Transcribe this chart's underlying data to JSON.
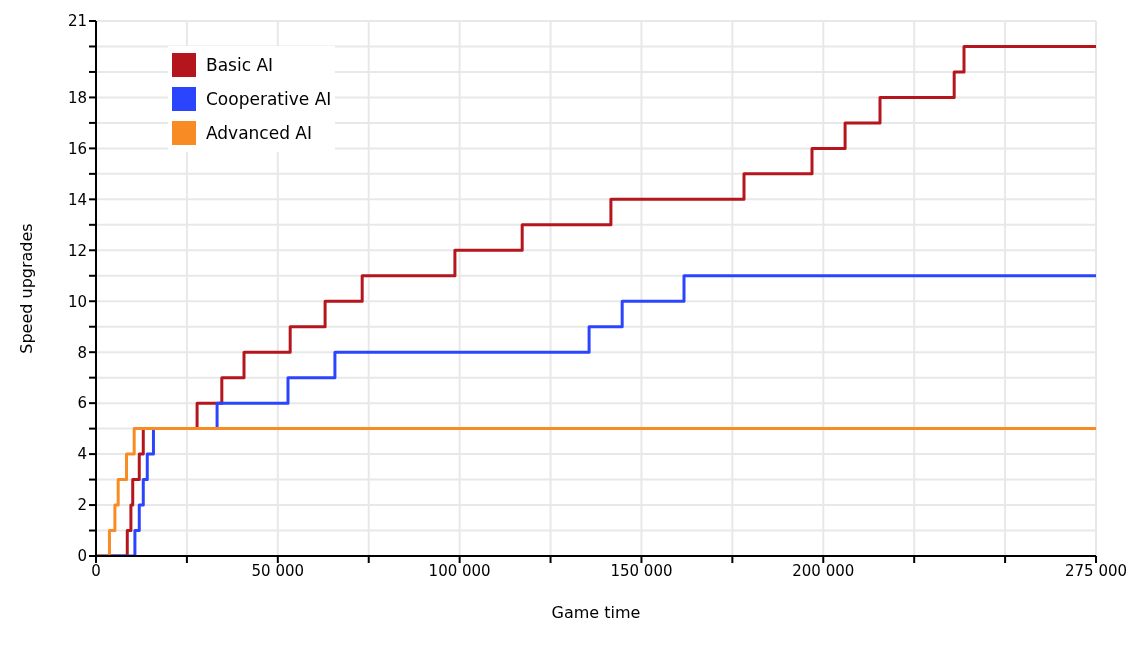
{
  "chart_data": {
    "type": "step",
    "xlabel": "Game time",
    "ylabel": "Speed upgrades",
    "xlim": [
      0,
      275000
    ],
    "ylim": [
      0,
      21
    ],
    "xticks": [
      0,
      {
        "value": 25000,
        "label": null
      },
      {
        "value": 50000,
        "label": "50 000"
      },
      {
        "value": 75000,
        "label": null
      },
      {
        "value": 100000,
        "label": "100 000"
      },
      {
        "value": 125000,
        "label": null
      },
      {
        "value": 150000,
        "label": "150 000"
      },
      {
        "value": 175000,
        "label": null
      },
      {
        "value": 200000,
        "label": "200 000"
      },
      {
        "value": 225000,
        "label": null
      },
      {
        "value": 250000,
        "label": null
      },
      {
        "value": 275000,
        "label": "275 000"
      }
    ],
    "yticks": [
      0,
      {
        "value": 1,
        "label": null
      },
      2,
      {
        "value": 3,
        "label": null
      },
      4,
      {
        "value": 5,
        "label": null
      },
      6,
      {
        "value": 7,
        "label": null
      },
      8,
      {
        "value": 9,
        "label": null
      },
      10,
      {
        "value": 11,
        "label": null
      },
      12,
      {
        "value": 13,
        "label": null
      },
      14,
      {
        "value": 15,
        "label": null
      },
      16,
      {
        "value": 17,
        "label": null
      },
      18,
      {
        "value": 19,
        "label": null
      },
      {
        "value": 20,
        "label": null
      },
      21
    ],
    "grid": true,
    "legend": "top left",
    "marker": "none",
    "line_style": "solid",
    "series": [
      {
        "name": "Basic AI",
        "color": "#b5161e",
        "x": [
          0,
          8600,
          9600,
          10100,
          11900,
          13000,
          27800,
          34600,
          40700,
          53400,
          63000,
          73200,
          98700,
          117200,
          141600,
          178200,
          196900,
          206000,
          215600,
          236000,
          238700,
          275000
        ],
        "values": [
          0,
          1,
          2,
          3,
          4,
          5,
          6,
          7,
          8,
          9,
          10,
          11,
          12,
          13,
          14,
          15,
          16,
          17,
          18,
          19,
          20,
          20
        ]
      },
      {
        "name": "Cooperative AI",
        "color": "#2b45ff",
        "x": [
          0,
          10700,
          11900,
          13000,
          14100,
          15800,
          33300,
          52800,
          65700,
          135600,
          144700,
          161700,
          275000
        ],
        "values": [
          0,
          1,
          2,
          3,
          4,
          5,
          6,
          7,
          8,
          9,
          10,
          11,
          11
        ]
      },
      {
        "name": "Advanced AI",
        "color": "#f98b24",
        "x": [
          0,
          3700,
          5200,
          6100,
          8400,
          10500,
          275000
        ],
        "values": [
          0,
          1,
          2,
          3,
          4,
          5,
          5
        ]
      }
    ]
  }
}
